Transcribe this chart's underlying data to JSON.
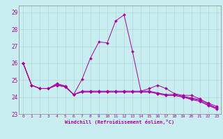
{
  "xlabel": "Windchill (Refroidissement éolien,°C)",
  "background_color": "#c8eef0",
  "grid_color": "#b0d8da",
  "line_color": "#aa00aa",
  "spine_color": "#888888",
  "x": [
    0,
    1,
    2,
    3,
    4,
    5,
    6,
    7,
    8,
    9,
    10,
    11,
    12,
    13,
    14,
    15,
    16,
    17,
    18,
    19,
    20,
    21,
    22,
    23
  ],
  "series1": [
    26.0,
    24.7,
    24.5,
    24.5,
    24.7,
    24.6,
    24.15,
    24.3,
    24.3,
    24.3,
    24.3,
    24.3,
    24.3,
    24.3,
    24.3,
    24.3,
    24.2,
    24.1,
    24.1,
    24.0,
    23.9,
    23.8,
    23.55,
    23.35
  ],
  "series2": [
    26.0,
    24.7,
    24.5,
    24.5,
    24.8,
    24.65,
    24.15,
    25.05,
    26.3,
    27.25,
    27.2,
    28.5,
    28.85,
    26.7,
    24.35,
    24.5,
    24.7,
    24.5,
    24.2,
    24.1,
    24.1,
    23.9,
    23.6,
    23.35
  ],
  "series3": [
    26.0,
    24.7,
    24.5,
    24.5,
    24.7,
    24.6,
    24.15,
    24.3,
    24.3,
    24.3,
    24.3,
    24.3,
    24.3,
    24.3,
    24.3,
    24.3,
    24.2,
    24.1,
    24.1,
    24.0,
    23.85,
    23.75,
    23.5,
    23.3
  ],
  "series4": [
    26.0,
    24.7,
    24.5,
    24.5,
    24.75,
    24.65,
    24.15,
    24.35,
    24.35,
    24.35,
    24.35,
    24.35,
    24.35,
    24.35,
    24.35,
    24.35,
    24.25,
    24.15,
    24.15,
    24.05,
    23.95,
    23.85,
    23.65,
    23.45
  ],
  "ylim": [
    23.0,
    29.4
  ],
  "yticks": [
    23,
    24,
    25,
    26,
    27,
    28,
    29
  ]
}
